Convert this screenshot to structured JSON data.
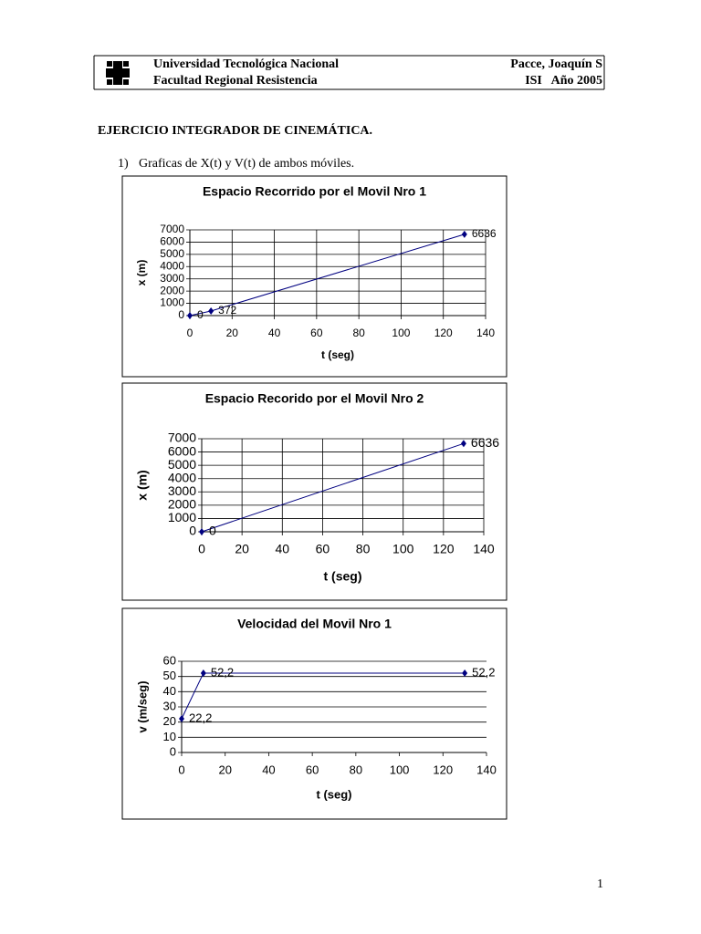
{
  "header": {
    "institution": "Universidad Tecnológica Nacional",
    "faculty": "Facultad Regional Resistencia",
    "author": "Pacce, Joaquín S",
    "course": "ISI   Año 2005"
  },
  "heading": "EJERCICIO INTEGRADOR DE CINEMÁTICA.",
  "items": [
    {
      "marker": "1)",
      "text": "Graficas de X(t) y V(t) de ambos móviles."
    }
  ],
  "chart_data": [
    {
      "type": "line",
      "title": "Espacio Recorrido por el Movil Nro 1",
      "x_label": "t (seg)",
      "y_label": "x (m)",
      "x": [
        0,
        10,
        130
      ],
      "series": [
        {
          "color": "#000080",
          "values": [
            0,
            372,
            6636
          ]
        }
      ],
      "xlim": [
        0,
        140
      ],
      "xticks": [
        0,
        20,
        40,
        60,
        80,
        100,
        120,
        140
      ],
      "ylim": [
        0,
        7000
      ],
      "yticks": [
        0,
        1000,
        2000,
        3000,
        4000,
        5000,
        6000,
        7000
      ],
      "grid": "both"
    },
    {
      "type": "line",
      "title": "Espacio Recorido por el Movil Nro 2",
      "x_label": "t (seg)",
      "y_label": "x (m)",
      "x": [
        0,
        130
      ],
      "series": [
        {
          "color": "#000080",
          "values": [
            0,
            6636
          ]
        }
      ],
      "xlim": [
        0,
        140
      ],
      "xticks": [
        0,
        20,
        40,
        60,
        80,
        100,
        120,
        140
      ],
      "ylim": [
        0,
        7000
      ],
      "yticks": [
        0,
        1000,
        2000,
        3000,
        4000,
        5000,
        6000,
        7000
      ],
      "grid": "both"
    },
    {
      "type": "line",
      "title": "Velocidad del Movil Nro 1",
      "x_label": "t (seg)",
      "y_label": "v (m/seg)",
      "x": [
        0,
        10,
        130
      ],
      "series": [
        {
          "color": "#000080",
          "values": [
            22.2,
            52.2,
            52.2
          ],
          "value_labels": [
            "22,2",
            "52,2",
            "52,2"
          ]
        }
      ],
      "xlim": [
        0,
        140
      ],
      "xticks": [
        0,
        20,
        40,
        60,
        80,
        100,
        120,
        140
      ],
      "ylim": [
        0,
        60
      ],
      "yticks": [
        0,
        10,
        20,
        30,
        40,
        50,
        60
      ],
      "grid": "y"
    }
  ],
  "page_number": "1"
}
